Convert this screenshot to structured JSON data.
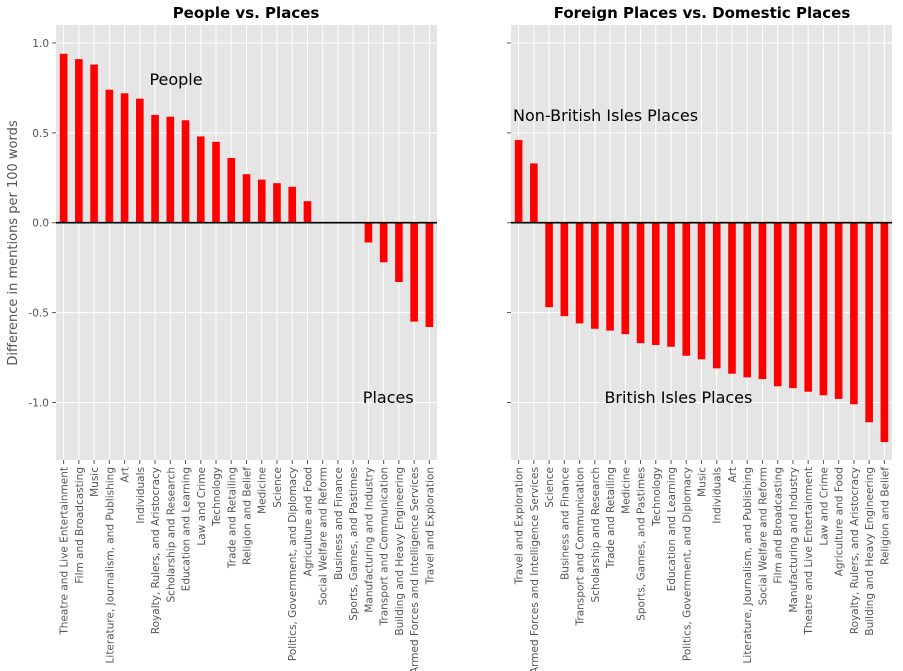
{
  "ylabel": "Difference in mentions per 100 words",
  "colors": {
    "bar": "#ff0000",
    "panel_bg": "#e5e5e5",
    "grid": "#ffffff",
    "zero_line": "#000000",
    "tick_text": "#555555"
  },
  "chart_data": [
    {
      "type": "bar",
      "title": "People vs. Places",
      "ylim": [
        -1.32,
        1.1
      ],
      "yticks": [
        1.0,
        0.5,
        0.0,
        -0.5,
        -1.0
      ],
      "ytick_labels": [
        "1.0",
        "0.5",
        "0.0",
        "-0.5",
        "-1.0"
      ],
      "grid": true,
      "categories": [
        "Theatre and Live Entertainment",
        "Film and Broadcasting",
        "Music",
        "Literature, Journalism, and Publishing",
        "Art",
        "Individuals",
        "Royalty, Rulers, and Aristocracy",
        "Scholarship and Research",
        "Education and Learning",
        "Law and Crime",
        "Technology",
        "Trade and Retailing",
        "Religion and Belief",
        "Medicine",
        "Science",
        "Politics, Government, and Diplomacy",
        "Agriculture and Food",
        "Social Welfare and Reform",
        "Business and Finance",
        "Sports, Games, and Pastimes",
        "Manufacturing and Industry",
        "Transport and Communication",
        "Building and Heavy Engineering",
        "Armed Forces and Intelligence Services",
        "Travel and Exploration"
      ],
      "values": [
        0.94,
        0.91,
        0.88,
        0.74,
        0.72,
        0.69,
        0.6,
        0.59,
        0.57,
        0.48,
        0.45,
        0.36,
        0.27,
        0.24,
        0.22,
        0.2,
        0.12,
        0.0,
        0.0,
        0.0,
        -0.11,
        -0.22,
        -0.33,
        -0.55,
        -0.58
      ],
      "annotations": [
        {
          "text": "People",
          "x": 6,
          "y": 0.8
        },
        {
          "text": "Places",
          "x": 20,
          "y": -0.97
        }
      ]
    },
    {
      "type": "bar",
      "title": "Foreign Places vs. Domestic Places",
      "ylim": [
        -1.32,
        1.1
      ],
      "yticks": [
        1.0,
        0.5,
        0.0,
        -0.5,
        -1.0
      ],
      "grid": true,
      "categories": [
        "Travel and Exploration",
        "Armed Forces and Intelligence Services",
        "Science",
        "Business and Finance",
        "Transport and Communication",
        "Scholarship and Research",
        "Trade and Retailing",
        "Medicine",
        "Sports, Games, and Pastimes",
        "Technology",
        "Education and Learning",
        "Politics, Government, and Diplomacy",
        "Music",
        "Individuals",
        "Art",
        "Literature, Journalism, and Publishing",
        "Social Welfare and Reform",
        "Film and Broadcasting",
        "Manufacturing and Industry",
        "Theatre and Live Entertainment",
        "Law and Crime",
        "Agriculture and Food",
        "Royalty, Rulers, and Aristocracy",
        "Building and Heavy Engineering",
        "Religion and Belief"
      ],
      "values": [
        0.46,
        0.33,
        -0.47,
        -0.52,
        -0.56,
        -0.59,
        -0.6,
        -0.62,
        -0.67,
        -0.68,
        -0.69,
        -0.74,
        -0.76,
        -0.81,
        -0.84,
        -0.86,
        -0.87,
        -0.91,
        -0.92,
        -0.94,
        -0.96,
        -0.98,
        -1.01,
        -1.11,
        -1.22
      ],
      "annotations": [
        {
          "text": "Non-British Isles Places",
          "x": 0,
          "y": 0.6
        },
        {
          "text": "British Isles Places",
          "x": 6,
          "y": -0.97
        }
      ]
    }
  ]
}
